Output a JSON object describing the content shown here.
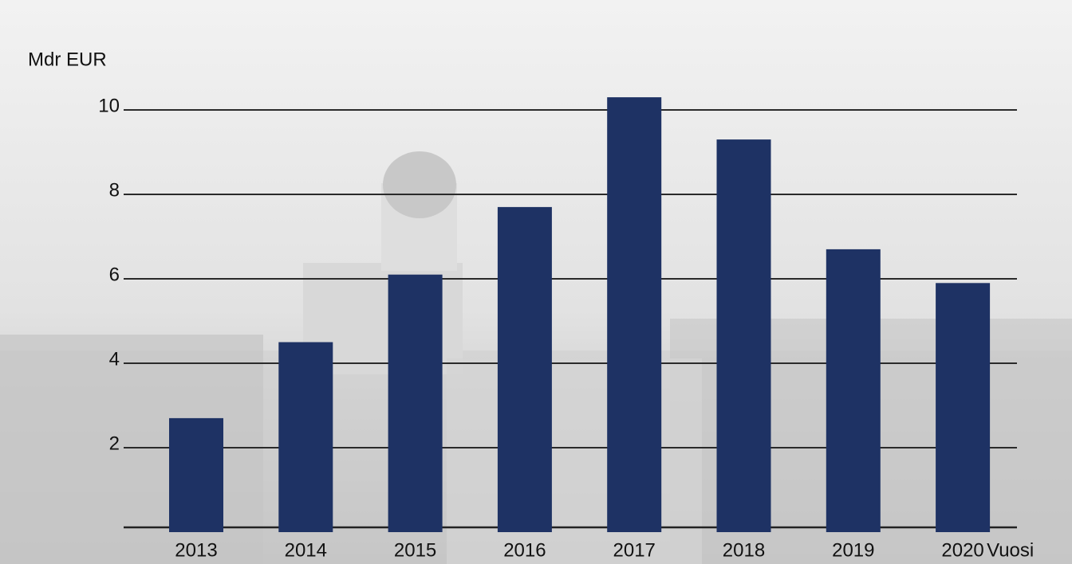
{
  "chart_data": {
    "type": "bar",
    "y_label": "Mdr EUR",
    "x_label": "Vuosi",
    "categories": [
      "2013",
      "2014",
      "2015",
      "2016",
      "2017",
      "2018",
      "2019",
      "2020"
    ],
    "values": [
      2.7,
      4.5,
      6.1,
      7.7,
      10.3,
      9.3,
      6.7,
      5.9
    ],
    "color": "#1e3264",
    "ylim": [
      0,
      11
    ],
    "yticks": [
      2,
      4,
      6,
      8,
      10
    ],
    "grid": true
  }
}
